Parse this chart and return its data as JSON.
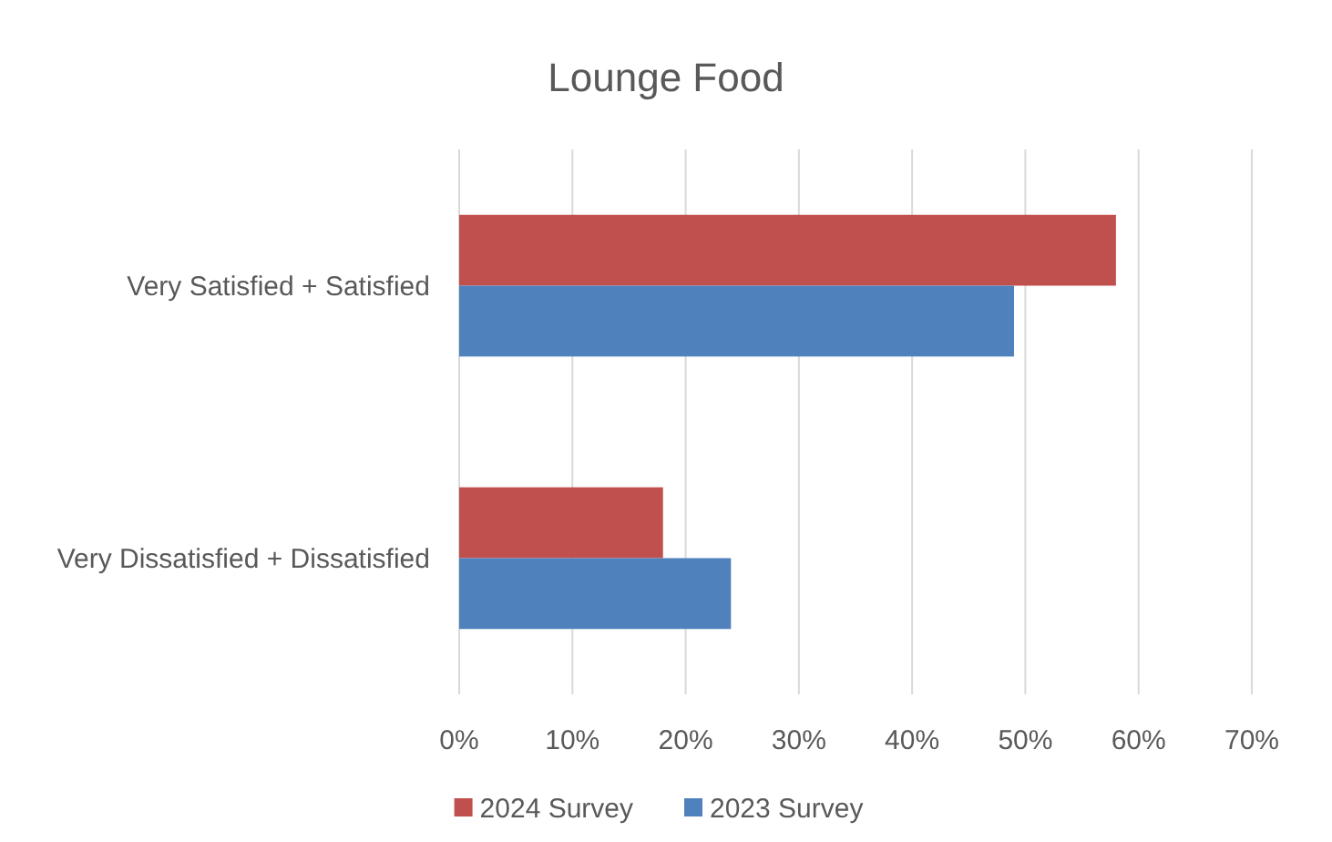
{
  "chart_data": {
    "type": "bar",
    "orientation": "horizontal",
    "title": "Lounge Food",
    "categories": [
      "Very Satisfied + Satisfied",
      "Very Dissatisfied + Dissatisfied"
    ],
    "series": [
      {
        "name": "2024 Survey",
        "color": "#c0504d",
        "values": [
          58,
          18
        ]
      },
      {
        "name": "2023 Survey",
        "color": "#4f81bd",
        "values": [
          49,
          24
        ]
      }
    ],
    "xlim": [
      0,
      70
    ],
    "xticks": [
      {
        "value": 0,
        "label": "0%"
      },
      {
        "value": 10,
        "label": "10%"
      },
      {
        "value": 20,
        "label": "20%"
      },
      {
        "value": 30,
        "label": "30%"
      },
      {
        "value": 40,
        "label": "40%"
      },
      {
        "value": 50,
        "label": "50%"
      },
      {
        "value": 60,
        "label": "60%"
      },
      {
        "value": 70,
        "label": "70%"
      }
    ],
    "grid": "x",
    "legend": "bottom"
  }
}
